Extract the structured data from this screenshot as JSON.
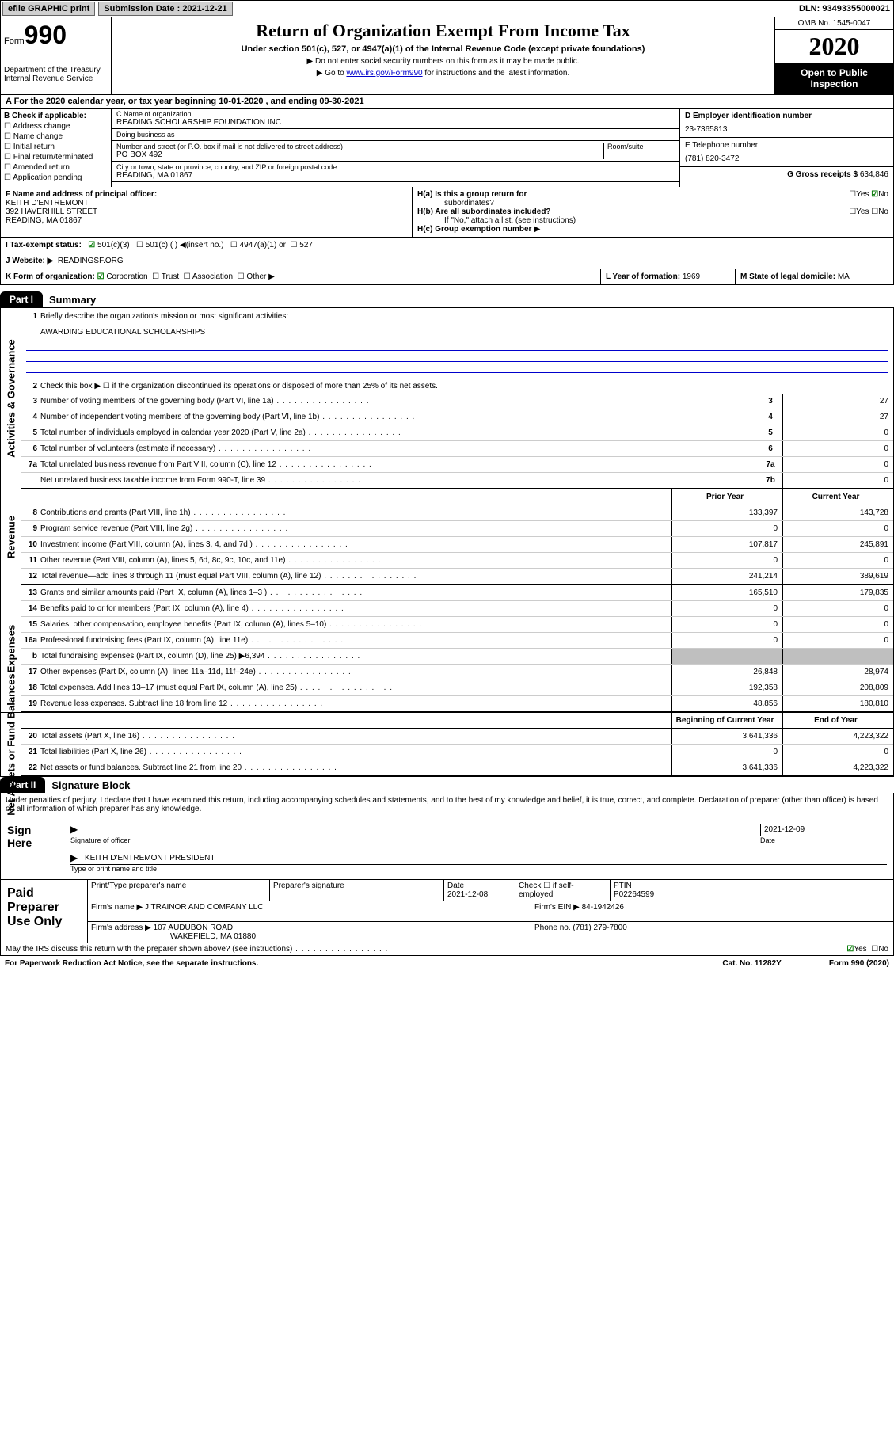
{
  "topbar": {
    "efile": "efile GRAPHIC print",
    "submission_label": "Submission Date : 2021-12-21",
    "dln": "DLN: 93493355000021"
  },
  "header": {
    "form_label": "Form",
    "form_num": "990",
    "dept": "Department of the Treasury\nInternal Revenue Service",
    "title": "Return of Organization Exempt From Income Tax",
    "subtitle": "Under section 501(c), 527, or 4947(a)(1) of the Internal Revenue Code (except private foundations)",
    "note1": "▶ Do not enter social security numbers on this form as it may be made public.",
    "note2_pre": "▶ Go to ",
    "note2_link": "www.irs.gov/Form990",
    "note2_post": " for instructions and the latest information.",
    "omb": "OMB No. 1545-0047",
    "year": "2020",
    "open": "Open to Public Inspection"
  },
  "row_a": "A   For the 2020 calendar year, or tax year beginning 10-01-2020    , and ending 09-30-2021",
  "col_b": {
    "hdr": "B Check if applicable:",
    "items": [
      "Address change",
      "Name change",
      "Initial return",
      "Final return/terminated",
      "Amended return",
      "Application pending"
    ]
  },
  "col_c": {
    "name_lab": "C Name of organization",
    "name": "READING SCHOLARSHIP FOUNDATION INC",
    "dba_lab": "Doing business as",
    "dba": "",
    "addr_lab": "Number and street (or P.O. box if mail is not delivered to street address)",
    "room_lab": "Room/suite",
    "addr": "PO BOX 492",
    "city_lab": "City or town, state or province, country, and ZIP or foreign postal code",
    "city": "READING, MA  01867"
  },
  "col_de": {
    "d_lab": "D Employer identification number",
    "d_val": "23-7365813",
    "e_lab": "E Telephone number",
    "e_val": "(781) 820-3472",
    "g_lab": "G Gross receipts $",
    "g_val": "634,846"
  },
  "section_f": {
    "lab": "F Name and address of principal officer:",
    "name": "KEITH D'ENTREMONT",
    "addr1": "392 HAVERHILL STREET",
    "addr2": "READING, MA  01867"
  },
  "section_h": {
    "ha_lab": "H(a)  Is this a group return for",
    "ha_sub": "subordinates?",
    "ha_yes": "Yes",
    "ha_no": "No",
    "hb_lab": "H(b)  Are all subordinates included?",
    "hb_note": "If \"No,\" attach a list. (see instructions)",
    "hc_lab": "H(c)  Group exemption number ▶"
  },
  "tax_status": {
    "lab": "I    Tax-exempt status:",
    "c3": "501(c)(3)",
    "c": "501(c) (  ) ◀(insert no.)",
    "a1": "4947(a)(1) or",
    "s527": "527"
  },
  "website": {
    "lab": "J   Website: ▶",
    "val": "READINGSF.ORG"
  },
  "row_k": {
    "lab": "K Form of organization:",
    "corp": "Corporation",
    "trust": "Trust",
    "assoc": "Association",
    "other": "Other ▶"
  },
  "row_l": {
    "lab": "L Year of formation:",
    "val": "1969"
  },
  "row_m": {
    "lab": "M State of legal domicile:",
    "val": "MA"
  },
  "part1": {
    "tab": "Part I",
    "title": "Summary",
    "line1_lab": "Briefly describe the organization's mission or most significant activities:",
    "line1_val": "AWARDING EDUCATIONAL SCHOLARSHIPS",
    "line2": "Check this box ▶ ☐  if the organization discontinued its operations or disposed of more than 25% of its net assets.",
    "rows_gov": [
      {
        "n": "3",
        "d": "Number of voting members of the governing body (Part VI, line 1a)",
        "box": "3",
        "v": "27"
      },
      {
        "n": "4",
        "d": "Number of independent voting members of the governing body (Part VI, line 1b)",
        "box": "4",
        "v": "27"
      },
      {
        "n": "5",
        "d": "Total number of individuals employed in calendar year 2020 (Part V, line 2a)",
        "box": "5",
        "v": "0"
      },
      {
        "n": "6",
        "d": "Total number of volunteers (estimate if necessary)",
        "box": "6",
        "v": "0"
      },
      {
        "n": "7a",
        "d": "Total unrelated business revenue from Part VIII, column (C), line 12",
        "box": "7a",
        "v": "0"
      },
      {
        "n": "",
        "d": "Net unrelated business taxable income from Form 990-T, line 39",
        "box": "7b",
        "v": "0"
      }
    ],
    "col_prior": "Prior Year",
    "col_current": "Current Year",
    "rows_rev": [
      {
        "n": "8",
        "d": "Contributions and grants (Part VIII, line 1h)",
        "p": "133,397",
        "c": "143,728"
      },
      {
        "n": "9",
        "d": "Program service revenue (Part VIII, line 2g)",
        "p": "0",
        "c": "0"
      },
      {
        "n": "10",
        "d": "Investment income (Part VIII, column (A), lines 3, 4, and 7d )",
        "p": "107,817",
        "c": "245,891"
      },
      {
        "n": "11",
        "d": "Other revenue (Part VIII, column (A), lines 5, 6d, 8c, 9c, 10c, and 11e)",
        "p": "0",
        "c": "0"
      },
      {
        "n": "12",
        "d": "Total revenue—add lines 8 through 11 (must equal Part VIII, column (A), line 12)",
        "p": "241,214",
        "c": "389,619"
      }
    ],
    "rows_exp": [
      {
        "n": "13",
        "d": "Grants and similar amounts paid (Part IX, column (A), lines 1–3 )",
        "p": "165,510",
        "c": "179,835"
      },
      {
        "n": "14",
        "d": "Benefits paid to or for members (Part IX, column (A), line 4)",
        "p": "0",
        "c": "0"
      },
      {
        "n": "15",
        "d": "Salaries, other compensation, employee benefits (Part IX, column (A), lines 5–10)",
        "p": "0",
        "c": "0"
      },
      {
        "n": "16a",
        "d": "Professional fundraising fees (Part IX, column (A), line 11e)",
        "p": "0",
        "c": "0"
      },
      {
        "n": "b",
        "d": "Total fundraising expenses (Part IX, column (D), line 25) ▶6,394",
        "p": "GREY",
        "c": "GREY"
      },
      {
        "n": "17",
        "d": "Other expenses (Part IX, column (A), lines 11a–11d, 11f–24e)",
        "p": "26,848",
        "c": "28,974"
      },
      {
        "n": "18",
        "d": "Total expenses. Add lines 13–17 (must equal Part IX, column (A), line 25)",
        "p": "192,358",
        "c": "208,809"
      },
      {
        "n": "19",
        "d": "Revenue less expenses. Subtract line 18 from line 12",
        "p": "48,856",
        "c": "180,810"
      }
    ],
    "col_begin": "Beginning of Current Year",
    "col_end": "End of Year",
    "rows_net": [
      {
        "n": "20",
        "d": "Total assets (Part X, line 16)",
        "p": "3,641,336",
        "c": "4,223,322"
      },
      {
        "n": "21",
        "d": "Total liabilities (Part X, line 26)",
        "p": "0",
        "c": "0"
      },
      {
        "n": "22",
        "d": "Net assets or fund balances. Subtract line 21 from line 20",
        "p": "3,641,336",
        "c": "4,223,322"
      }
    ]
  },
  "part2": {
    "tab": "Part II",
    "title": "Signature Block",
    "perjury": "Under penalties of perjury, I declare that I have examined this return, including accompanying schedules and statements, and to the best of my knowledge and belief, it is true, correct, and complete. Declaration of preparer (other than officer) is based on all information of which preparer has any knowledge.",
    "sign_here": "Sign Here",
    "sig_officer": "Signature of officer",
    "sig_date_lab": "Date",
    "sig_date": "2021-12-09",
    "sig_name": "KEITH D'ENTREMONT PRESIDENT",
    "sig_type": "Type or print name and title"
  },
  "prep": {
    "hdr": "Paid Preparer Use Only",
    "pt_name_lab": "Print/Type preparer's name",
    "pt_name": "",
    "sig_lab": "Preparer's signature",
    "date_lab": "Date",
    "date": "2021-12-08",
    "check_lab": "Check ☐ if self-employed",
    "ptin_lab": "PTIN",
    "ptin": "P02264599",
    "firm_name_lab": "Firm's name    ▶",
    "firm_name": "J TRAINOR AND COMPANY LLC",
    "firm_ein_lab": "Firm's EIN ▶",
    "firm_ein": "84-1942426",
    "firm_addr_lab": "Firm's address ▶",
    "firm_addr1": "107 AUDUBON ROAD",
    "firm_addr2": "WAKEFIELD, MA  01880",
    "phone_lab": "Phone no.",
    "phone": "(781) 279-7800"
  },
  "footer": {
    "discuss": "May the IRS discuss this return with the preparer shown above? (see instructions)",
    "yes": "Yes",
    "no": "No",
    "paperwork": "For Paperwork Reduction Act Notice, see the separate instructions.",
    "cat": "Cat. No. 11282Y",
    "form": "Form 990 (2020)"
  },
  "vtabs": {
    "gov": "Activities & Governance",
    "rev": "Revenue",
    "exp": "Expenses",
    "net": "Net Assets or Fund Balances"
  }
}
